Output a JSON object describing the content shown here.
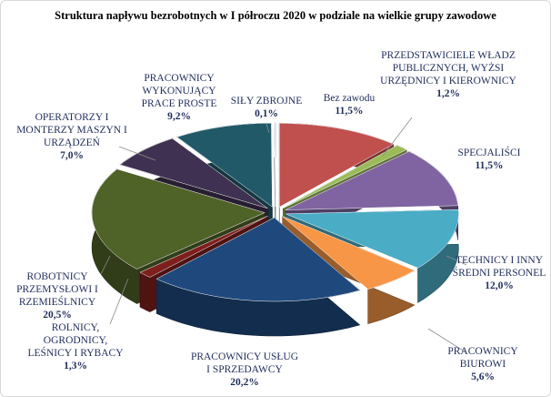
{
  "chart_data": {
    "type": "pie",
    "title": "Struktura napływu bezrobotnych  w I półroczu 2020 w podziale na wielkie grupy zawodowe",
    "categories": [
      "Bez zawodu",
      "PRZEDSTAWICIELE WŁADZ PUBLICZNYCH, WYŻSI URZĘDNICY I KIEROWNICY",
      "SPECJALIŚCI",
      "TECHNICY I INNY ŚREDNI PERSONEL",
      "PRACOWNICY BIUROWI",
      "PRACOWNICY USŁUG I SPRZEDAWCY",
      "ROLNICY, OGRODNICY, LEŚNICY I RYBACY",
      "ROBOTNICY PRZEMYSŁOWI I RZEMIEŚLNICY",
      "OPERATORZY I MONTERZY MASZYN I URZĄDZEŃ",
      "PRACOWNICY WYKONUJĄCY PRACE PROSTE",
      "SIŁY ZBROJNE"
    ],
    "values": [
      11.5,
      1.2,
      11.5,
      12.0,
      5.6,
      20.2,
      1.3,
      20.5,
      7.0,
      9.2,
      0.1
    ],
    "value_labels": [
      "11,5%",
      "1,2%",
      "11,5%",
      "12,0%",
      "5,6%",
      "20,2%",
      "1,3%",
      "20,5%",
      "7,0%",
      "9,2%",
      "0,1%"
    ],
    "colors": [
      "#c0504d",
      "#9bbb59",
      "#8064a2",
      "#4bacc6",
      "#f79646",
      "#1f497d",
      "#7f1f1d",
      "#4f6228",
      "#3f3151",
      "#215968",
      "#b9cde5"
    ]
  }
}
